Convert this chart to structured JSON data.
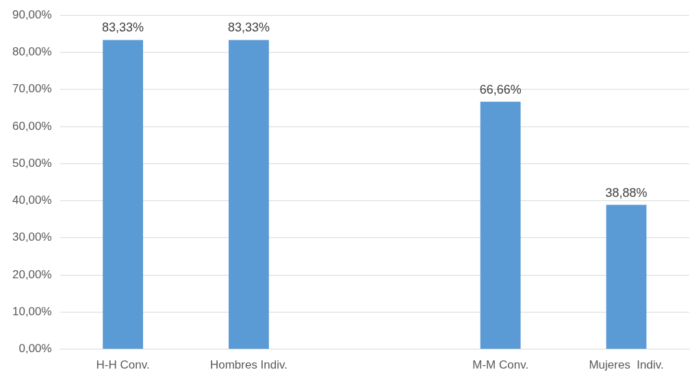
{
  "chart_data": {
    "type": "bar",
    "categories": [
      "H-H Conv.",
      "Hombres Indiv.",
      null,
      "M-M Conv.",
      "Mujeres  Indiv."
    ],
    "values": [
      83.33,
      83.33,
      null,
      66.66,
      38.88
    ],
    "color": "#5b9bd5",
    "value_labels": [
      "83,33%",
      "83,33%",
      null,
      "66,66%",
      "38,88%"
    ],
    "ylim": [
      0,
      90
    ],
    "yticks": [
      {
        "value": 0,
        "label": "0,00%"
      },
      {
        "value": 10,
        "label": "10,00%"
      },
      {
        "value": 20,
        "label": "20,00%"
      },
      {
        "value": 30,
        "label": "30,00%"
      },
      {
        "value": 40,
        "label": "40,00%"
      },
      {
        "value": 50,
        "label": "50,00%"
      },
      {
        "value": 60,
        "label": "60,00%"
      },
      {
        "value": 70,
        "label": "70,00%"
      },
      {
        "value": 80,
        "label": "80,00%"
      },
      {
        "value": 90,
        "label": "90,00%"
      }
    ],
    "grid": "y",
    "legend": false
  }
}
